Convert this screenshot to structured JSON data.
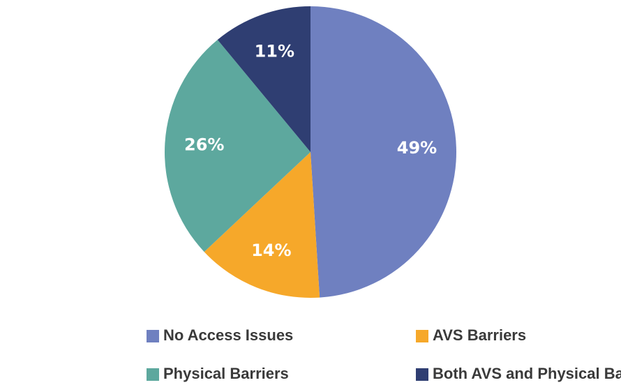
{
  "chart_data": {
    "type": "pie",
    "categories": [
      "No Access Issues",
      "AVS Barriers",
      "Physical Barriers",
      "Both AVS and Physical Barriers"
    ],
    "values": [
      49,
      14,
      26,
      11
    ],
    "value_labels": [
      "49%",
      "14%",
      "26%",
      "11%"
    ],
    "colors": [
      "#6f80c0",
      "#f6a82a",
      "#5da89e",
      "#2f3e72"
    ],
    "legend": "bottom"
  }
}
